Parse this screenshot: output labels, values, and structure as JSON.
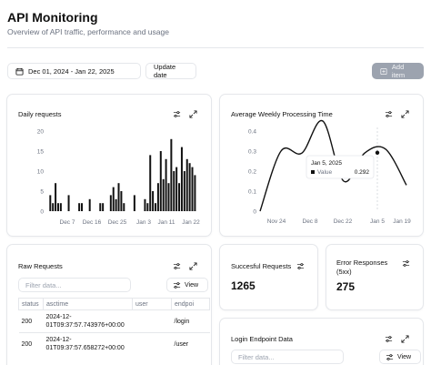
{
  "header": {
    "title": "API Monitoring",
    "subtitle": "Overview of API traffic, performance and usage"
  },
  "toolbar": {
    "date_range": "Dec 01, 2024 - Jan 22, 2025",
    "update_label": "Update date",
    "add_label": "Add item"
  },
  "daily_requests": {
    "title": "Daily requests",
    "chart_data": {
      "type": "bar",
      "title": "Daily requests",
      "ylim": [
        0,
        20
      ],
      "yticks": [
        "0",
        "5",
        "10",
        "15",
        "20"
      ],
      "xticks": [
        "Dec 7",
        "Dec 16",
        "Dec 25",
        "Jan 3",
        "Jan 11",
        "Jan 22"
      ],
      "values": [
        4,
        2,
        7,
        2,
        2,
        0,
        0,
        4,
        0,
        0,
        0,
        2,
        2,
        0,
        0,
        3,
        0,
        0,
        0,
        2,
        2,
        0,
        0,
        4,
        6,
        3,
        7,
        5,
        2,
        0,
        0,
        0,
        4,
        0,
        0,
        0,
        3,
        2,
        14,
        5,
        2,
        7,
        15,
        8,
        13,
        7,
        18,
        10,
        11,
        7,
        16,
        10,
        13,
        12,
        11,
        9
      ]
    }
  },
  "weekly_processing": {
    "title": "Average Weekly Processing Time",
    "chart_data": {
      "type": "line",
      "title": "Average Weekly Processing Time",
      "ylim": [
        0,
        0.4
      ],
      "yticks": [
        "0",
        "0.1",
        "0.2",
        "0.3",
        "0.4"
      ],
      "xticks": [
        "Nov 24",
        "Dec 8",
        "Dec 22",
        "Jan 5",
        "Jan 19"
      ],
      "points": [
        0.0,
        0.3,
        0.29,
        0.45,
        0.15,
        0.29,
        0.31,
        0.13
      ],
      "series": [
        {
          "name": "Value"
        }
      ],
      "tooltip": {
        "date": "Jan 5, 2025",
        "label": "Value",
        "value": "0.292"
      }
    }
  },
  "raw_requests": {
    "title": "Raw Requests",
    "filter_placeholder": "Filter data...",
    "view_label": "View",
    "columns": [
      "status",
      "asctime",
      "user",
      "endpoi"
    ],
    "rows": [
      {
        "status": "200",
        "asctime_line1": "2024-12-",
        "asctime_line2": "01T09:37:57.743976+00:00",
        "user": "",
        "endpoint": "/login"
      },
      {
        "status": "200",
        "asctime_line1": "2024-12-",
        "asctime_line2": "01T09:37:57.658272+00:00",
        "user": "",
        "endpoint": "/user"
      }
    ]
  },
  "successful_requests": {
    "title": "Succesful Requests",
    "value": "1265"
  },
  "error_responses": {
    "title_line1": "Error Responses",
    "title_line2": "(5xx)",
    "value": "275"
  },
  "login_endpoint": {
    "title": "Login Endpoint Data",
    "filter_placeholder": "Filter data...",
    "view_label": "View"
  }
}
